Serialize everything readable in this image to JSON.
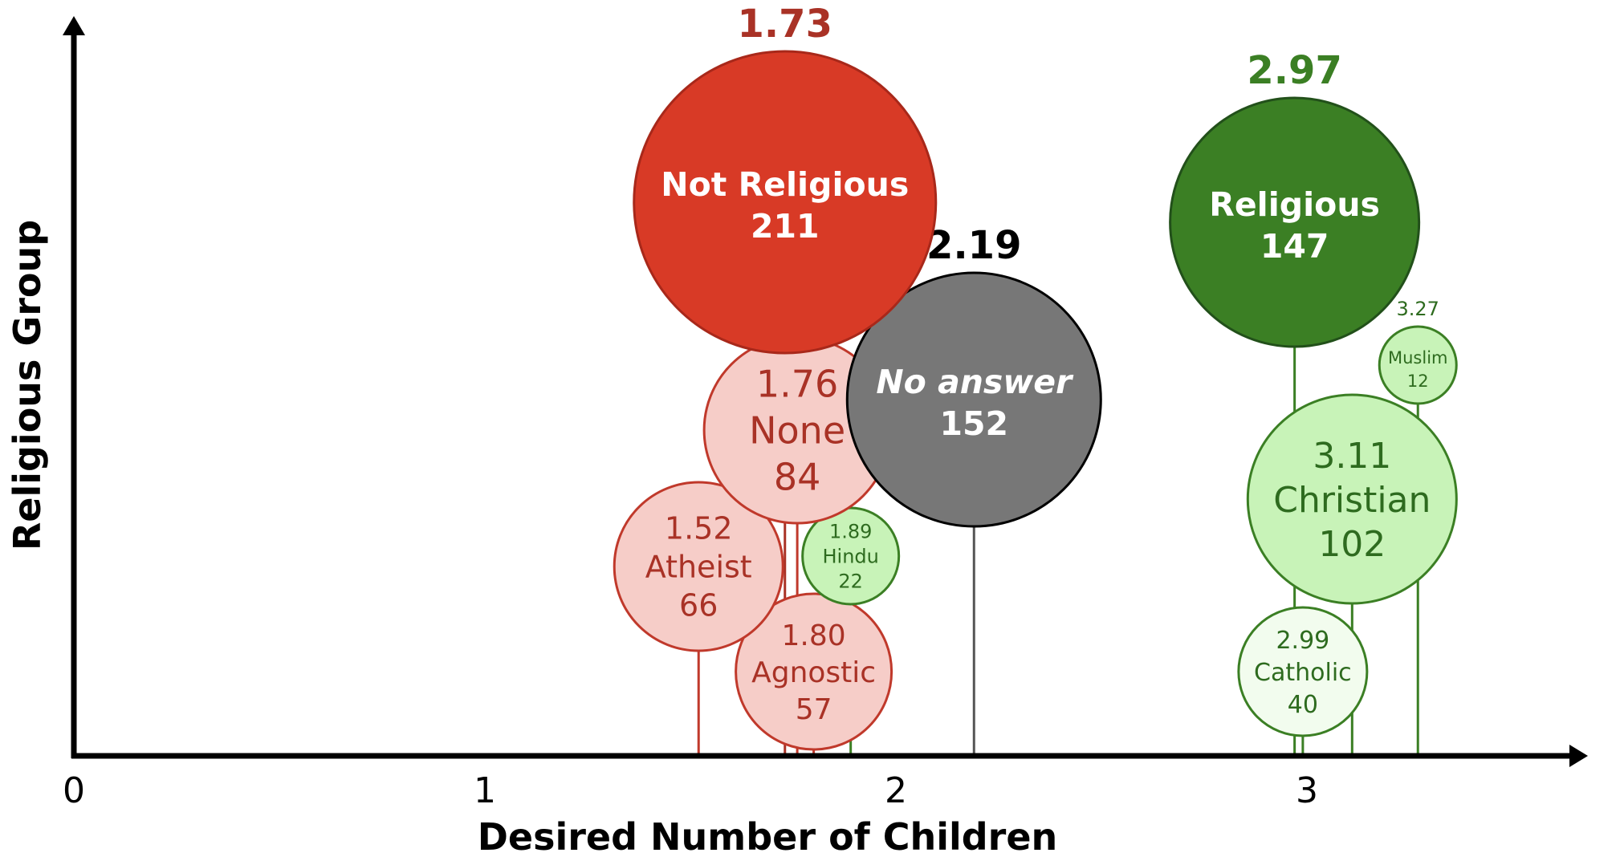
{
  "chart_data": {
    "type": "scatter",
    "subtype": "bubble",
    "title": "",
    "xlabel": "Desired Number of Children",
    "ylabel": "Religious Group",
    "xlim": [
      0,
      3.7
    ],
    "x_ticks": [
      {
        "value": 0,
        "label": "0"
      },
      {
        "value": 1,
        "label": "1"
      },
      {
        "value": 2,
        "label": "2"
      },
      {
        "value": 3,
        "label": "3"
      }
    ],
    "grid": false,
    "legend": "none",
    "colors": {
      "not_religious_dark": "#D83A26",
      "not_religious_light": "#F6CDC8",
      "not_religious_text": "#A93226",
      "religious_dark": "#3B7F24",
      "religious_light": "#C8F3B8",
      "religious_lighter": "#F2FCEE",
      "religious_text": "#2E6B1F",
      "no_answer": "#777777",
      "axis": "#000000"
    },
    "bubbles": [
      {
        "id": "not-religious",
        "group": "Not Religious",
        "value": 1.73,
        "value_label": "1.73",
        "count": 211,
        "count_label": "211",
        "level": "top",
        "style": "red-dark"
      },
      {
        "id": "none",
        "group": "None",
        "value": 1.76,
        "value_label": "1.76",
        "count": 84,
        "count_label": "84",
        "level": "sub",
        "style": "red-light"
      },
      {
        "id": "atheist",
        "group": "Atheist",
        "value": 1.52,
        "value_label": "1.52",
        "count": 66,
        "count_label": "66",
        "level": "sub",
        "style": "red-light"
      },
      {
        "id": "agnostic",
        "group": "Agnostic",
        "value": 1.8,
        "value_label": "1.80",
        "count": 57,
        "count_label": "57",
        "level": "sub",
        "style": "red-light"
      },
      {
        "id": "hindu",
        "group": "Hindu",
        "value": 1.89,
        "value_label": "1.89",
        "count": 22,
        "count_label": "22",
        "level": "sub",
        "style": "green-light"
      },
      {
        "id": "no-answer",
        "group": "No answer",
        "value": 2.19,
        "value_label": "2.19",
        "count": 152,
        "count_label": "152",
        "level": "top",
        "style": "gray"
      },
      {
        "id": "religious",
        "group": "Religious",
        "value": 2.97,
        "value_label": "2.97",
        "count": 147,
        "count_label": "147",
        "level": "top",
        "style": "green-dark"
      },
      {
        "id": "christian",
        "group": "Christian",
        "value": 3.11,
        "value_label": "3.11",
        "count": 102,
        "count_label": "102",
        "level": "sub",
        "style": "green-light"
      },
      {
        "id": "catholic",
        "group": "Catholic",
        "value": 2.99,
        "value_label": "2.99",
        "count": 40,
        "count_label": "40",
        "level": "sub",
        "style": "green-lighter"
      },
      {
        "id": "muslim",
        "group": "Muslim",
        "value": 3.27,
        "value_label": "3.27",
        "count": 12,
        "count_label": "12",
        "level": "sub",
        "style": "green-light"
      }
    ]
  }
}
